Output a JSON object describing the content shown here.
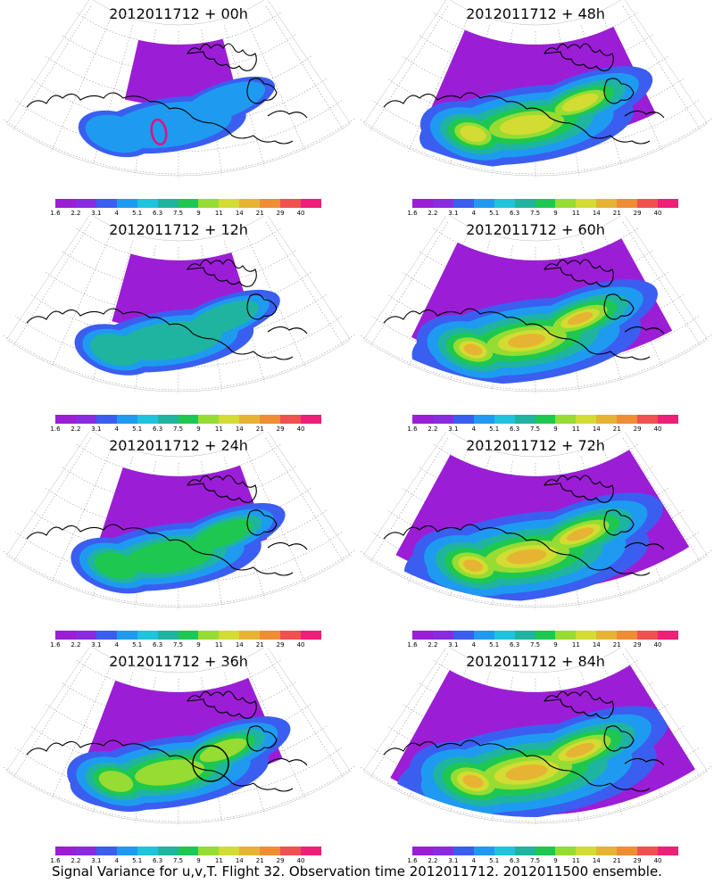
{
  "footer": "Signal Variance for u,v,T. Flight 32. Observation time 2012011712. 2012011500 ensemble.",
  "colorbar": {
    "colors": [
      "#9b1ed6",
      "#8a2be2",
      "#3a5ef0",
      "#1e9bf0",
      "#1ec3dc",
      "#1eb4a0",
      "#1ec850",
      "#96dc32",
      "#d2dc32",
      "#e6b432",
      "#f08c32",
      "#f05050",
      "#f01e78"
    ],
    "labels": [
      "1.6",
      "2.2",
      "3.1",
      "4",
      "5.1",
      "6.3",
      "7.5",
      "9",
      "11",
      "14",
      "21",
      "29",
      "40"
    ]
  },
  "panels": [
    {
      "title": "2012011712 + 00h",
      "level": 0,
      "marker": "magenta-contour"
    },
    {
      "title": "2012011712 + 48h",
      "level": 4,
      "marker": ""
    },
    {
      "title": "2012011712 + 12h",
      "level": 1,
      "marker": ""
    },
    {
      "title": "2012011712 + 60h",
      "level": 5,
      "marker": ""
    },
    {
      "title": "2012011712 + 24h",
      "level": 2,
      "marker": ""
    },
    {
      "title": "2012011712 + 72h",
      "level": 6,
      "marker": ""
    },
    {
      "title": "2012011712 + 36h",
      "level": 3,
      "marker": "black-circle"
    },
    {
      "title": "2012011712 + 84h",
      "level": 7,
      "marker": ""
    }
  ]
}
